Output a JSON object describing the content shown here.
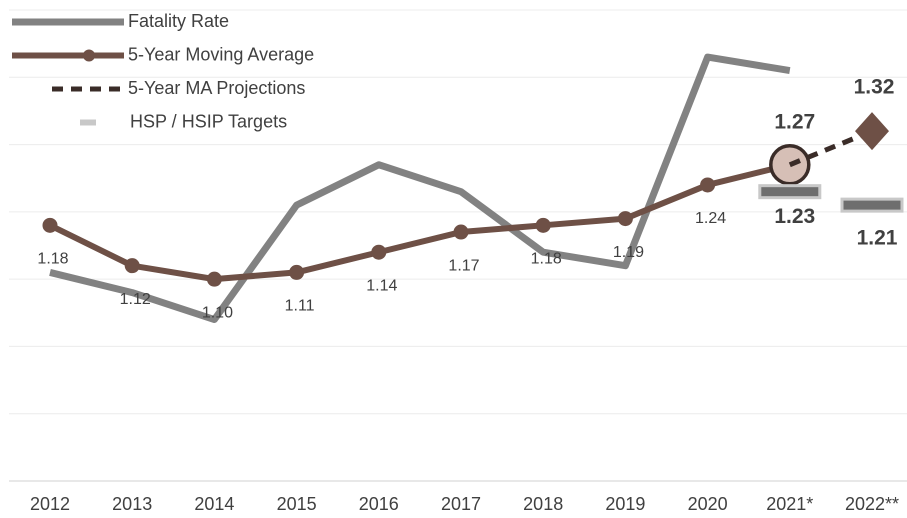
{
  "chart_data": {
    "type": "line",
    "categories": [
      "2012",
      "2013",
      "2014",
      "2015",
      "2016",
      "2017",
      "2018",
      "2019",
      "2020",
      "2021*",
      "2022**"
    ],
    "ylim": [
      0.8,
      1.5
    ],
    "yticks": [
      0.8,
      0.9,
      1.0,
      1.1,
      1.2,
      1.3,
      1.4,
      1.5
    ],
    "grid": true,
    "legend": "top-left",
    "series": [
      {
        "name": "Fatality Rate",
        "color": "#828282",
        "style": "line",
        "values": [
          1.11,
          1.08,
          1.04,
          1.21,
          1.27,
          1.23,
          1.14,
          1.12,
          1.43,
          1.41,
          null
        ]
      },
      {
        "name": "5-Year Moving Average",
        "color": "#6e5046",
        "style": "line-markers",
        "values": [
          1.18,
          1.12,
          1.1,
          1.11,
          1.14,
          1.17,
          1.18,
          1.19,
          1.24,
          1.27,
          null
        ],
        "value_labels": [
          "1.18",
          "1.12",
          "1.10",
          "1.11",
          "1.14",
          "1.17",
          "1.18",
          "1.19",
          "1.24",
          "1.27",
          null
        ]
      },
      {
        "name": "5-Year MA Projections",
        "color": "#3a2c28",
        "style": "dashed",
        "values": [
          null,
          null,
          null,
          null,
          null,
          null,
          null,
          null,
          null,
          1.27,
          1.32
        ],
        "value_labels": [
          null,
          null,
          null,
          null,
          null,
          null,
          null,
          null,
          null,
          null,
          "1.32"
        ]
      },
      {
        "name": "HSP / HSIP Targets",
        "color": "#6e6e6e",
        "style": "target",
        "values": [
          null,
          null,
          null,
          null,
          null,
          null,
          null,
          null,
          null,
          1.23,
          1.21
        ],
        "value_labels": [
          null,
          null,
          null,
          null,
          null,
          null,
          null,
          null,
          null,
          "1.23",
          "1.21"
        ]
      }
    ]
  }
}
